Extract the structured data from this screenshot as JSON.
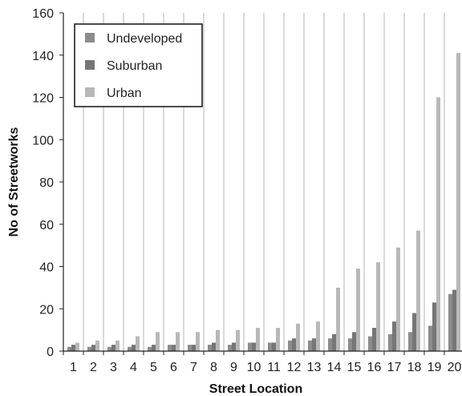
{
  "chart_data": {
    "type": "bar",
    "xlabel": "Street Location",
    "ylabel": "No of Streetworks",
    "categories": [
      "1",
      "2",
      "3",
      "4",
      "5",
      "6",
      "7",
      "8",
      "9",
      "10",
      "11",
      "12",
      "13",
      "14",
      "15",
      "16",
      "17",
      "18",
      "19",
      "20"
    ],
    "ylim": [
      0,
      160
    ],
    "yticks": [
      0,
      20,
      40,
      60,
      80,
      100,
      120,
      140,
      160
    ],
    "grid": "vertical",
    "legend_position": "top-left",
    "series": [
      {
        "name": "Undeveloped",
        "color": "#8c8c8c",
        "values": [
          2,
          2,
          2,
          2,
          2,
          3,
          3,
          3,
          3,
          4,
          4,
          5,
          5,
          6,
          6,
          7,
          8,
          9,
          12,
          27
        ]
      },
      {
        "name": "Suburban",
        "color": "#767676",
        "values": [
          3,
          3,
          3,
          3,
          3,
          3,
          3,
          4,
          4,
          4,
          4,
          6,
          6,
          8,
          9,
          11,
          14,
          18,
          23,
          29
        ]
      },
      {
        "name": "Urban",
        "color": "#b8b8b8",
        "values": [
          4,
          5,
          5,
          7,
          9,
          9,
          9,
          10,
          10,
          11,
          11,
          13,
          14,
          30,
          39,
          42,
          49,
          57,
          120,
          141
        ]
      }
    ]
  }
}
